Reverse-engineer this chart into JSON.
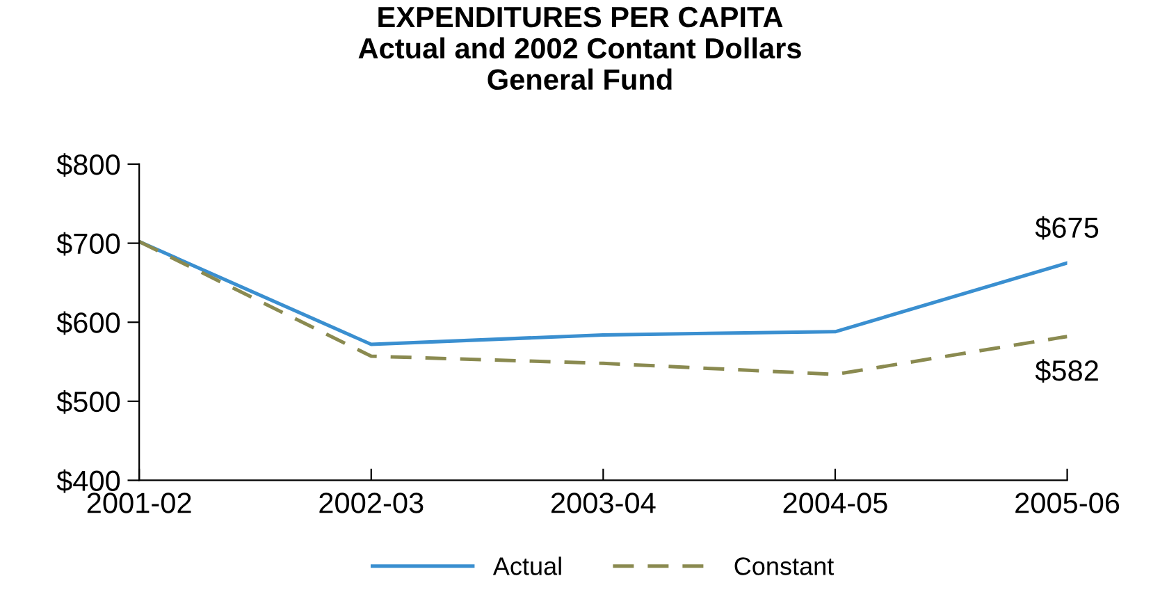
{
  "chart_data": {
    "type": "line",
    "title": "EXPENDITURES PER CAPITA\nActual and 2002 Contant Dollars\nGeneral Fund",
    "categories": [
      "2001-02",
      "2002-03",
      "2003-04",
      "2004-05",
      "2005-06"
    ],
    "series": [
      {
        "name": "Actual",
        "color": "#3a8fd0",
        "line_style": "solid",
        "values": [
          702,
          572,
          584,
          588,
          675
        ],
        "value_labels": [
          null,
          null,
          null,
          null,
          "$675"
        ]
      },
      {
        "name": "Constant",
        "color": "#8a8a50",
        "line_style": "dashed",
        "values": [
          702,
          557,
          548,
          534,
          582
        ],
        "value_labels": [
          null,
          null,
          null,
          null,
          "$582"
        ]
      }
    ],
    "ylim": [
      400,
      800
    ],
    "yticks": [
      {
        "value": 400,
        "label": "$400"
      },
      {
        "value": 500,
        "label": "$500"
      },
      {
        "value": 600,
        "label": "$600"
      },
      {
        "value": 700,
        "label": "$700"
      },
      {
        "value": 800,
        "label": "$800"
      }
    ],
    "grid": false,
    "legend": "bottom",
    "marker": "none"
  }
}
